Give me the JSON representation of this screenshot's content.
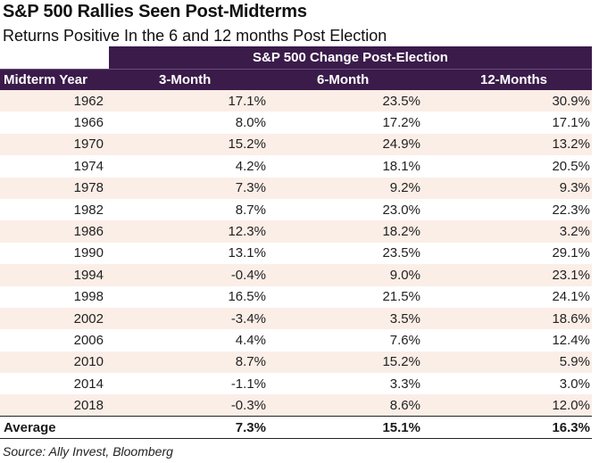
{
  "chart_data": {
    "type": "table",
    "title": "S&P 500 Rallies Seen Post-Midterms",
    "subtitle": "Returns Positive In the 6 and 12 months Post Election",
    "group_header": "S&P 500 Change Post-Election",
    "columns": [
      "Midterm Year",
      "3-Month",
      "6-Month",
      "12-Months"
    ],
    "rows": [
      [
        "1962",
        "17.1%",
        "23.5%",
        "30.9%"
      ],
      [
        "1966",
        "8.0%",
        "17.2%",
        "17.1%"
      ],
      [
        "1970",
        "15.2%",
        "24.9%",
        "13.2%"
      ],
      [
        "1974",
        "4.2%",
        "18.1%",
        "20.5%"
      ],
      [
        "1978",
        "7.3%",
        "9.2%",
        "9.3%"
      ],
      [
        "1982",
        "8.7%",
        "23.0%",
        "22.3%"
      ],
      [
        "1986",
        "12.3%",
        "18.2%",
        "3.2%"
      ],
      [
        "1990",
        "13.1%",
        "23.5%",
        "29.1%"
      ],
      [
        "1994",
        "-0.4%",
        "9.0%",
        "23.1%"
      ],
      [
        "1998",
        "16.5%",
        "21.5%",
        "24.1%"
      ],
      [
        "2002",
        "-3.4%",
        "3.5%",
        "18.6%"
      ],
      [
        "2006",
        "4.4%",
        "7.6%",
        "12.4%"
      ],
      [
        "2010",
        "8.7%",
        "15.2%",
        "5.9%"
      ],
      [
        "2014",
        "-1.1%",
        "3.3%",
        "3.0%"
      ],
      [
        "2018",
        "-0.3%",
        "8.6%",
        "12.0%"
      ]
    ],
    "average": [
      "Average",
      "7.3%",
      "15.1%",
      "16.3%"
    ],
    "source": "Source: Ally Invest, Bloomberg"
  },
  "colors": {
    "header_bg": "#3a1b4a",
    "stripe": "#fbeee7"
  }
}
